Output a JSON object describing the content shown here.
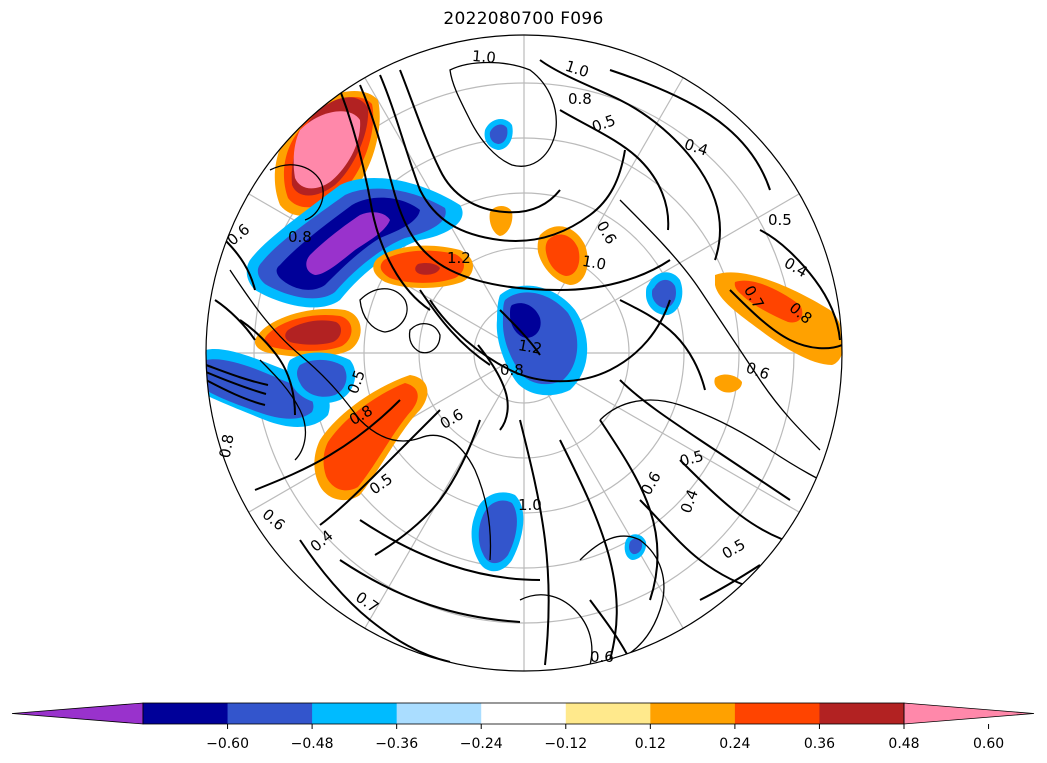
{
  "title": "2022080700 F096",
  "colorbar": {
    "ticks": [
      "−0.60",
      "−0.48",
      "−0.36",
      "−0.24",
      "−0.12",
      "0.12",
      "0.24",
      "0.36",
      "0.48",
      "0.60"
    ],
    "under_color": "#9932cc",
    "over_color": "#ff88aa",
    "bins": [
      {
        "range": "-0.60 to -0.48",
        "color": "#000099"
      },
      {
        "range": "-0.48 to -0.36",
        "color": "#3355cc"
      },
      {
        "range": "-0.36 to -0.24",
        "color": "#00bbff"
      },
      {
        "range": "-0.24 to -0.12",
        "color": "#aaddff"
      },
      {
        "range": "-0.12 to 0.12",
        "color": "#ffffff"
      },
      {
        "range": "0.12 to 0.24",
        "color": "#ffe98c"
      },
      {
        "range": "0.24 to 0.36",
        "color": "#ffa100"
      },
      {
        "range": "0.36 to 0.48",
        "color": "#ff4400"
      },
      {
        "range": "0.48 to 0.60",
        "color": "#b22222"
      }
    ]
  },
  "contour_labels": [
    "1.0",
    "1.0",
    "0.8",
    "0.5",
    "0.4",
    "0.5",
    "0.4",
    "0.7",
    "0.8",
    "0.6",
    "1.2",
    "1.2",
    "1.0",
    "0.8",
    "0.6",
    "0.6",
    "0.4",
    "0.5",
    "0.6",
    "0.7",
    "0.8",
    "0.6",
    "0.4",
    "0.5",
    "0.6",
    "1.0",
    "0.8",
    "0.6",
    "0.5",
    "0.5",
    "0.8"
  ]
}
